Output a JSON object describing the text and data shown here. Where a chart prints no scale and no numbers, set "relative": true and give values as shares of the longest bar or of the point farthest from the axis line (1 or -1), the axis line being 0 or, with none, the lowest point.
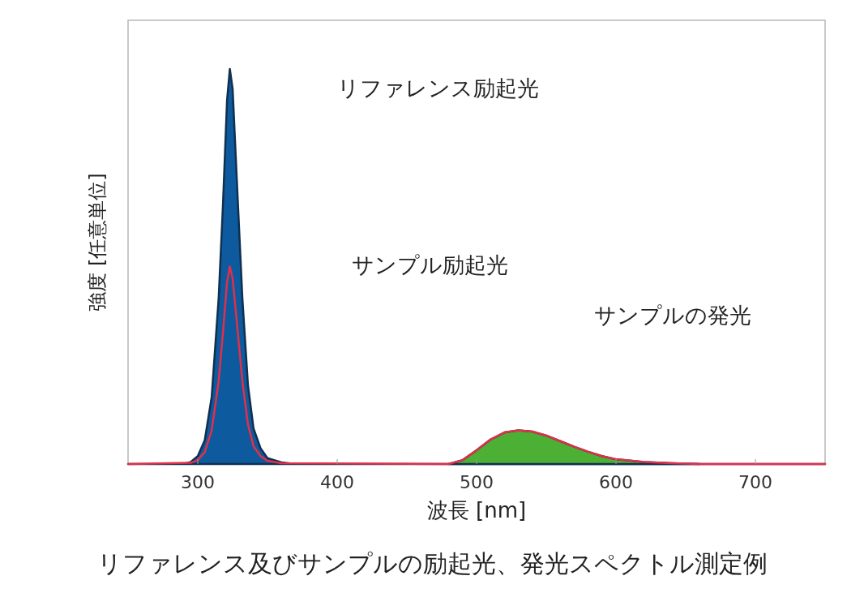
{
  "chart_data": {
    "type": "area",
    "relative": true,
    "xlabel": "波長 [nm]",
    "ylabel": "強度 [任意単位]",
    "annotations": [
      "リファレンス励起光",
      "サンプル励起光",
      "サンプルの発光",
      "リファレンス及びサンプルの励起光、発光スペクトル測定例"
    ],
    "xlim": [
      250,
      750
    ],
    "xticks": [
      300,
      400,
      500,
      600,
      700
    ],
    "tick_labels": "x",
    "grid": false,
    "series": [
      {
        "color": "#0d5a9e",
        "x": [
          250,
          290,
          295,
          300,
          305,
          310,
          315,
          318,
          321,
          323,
          325,
          328,
          332,
          336,
          340,
          345,
          350,
          360,
          370,
          750
        ],
        "values": [
          0,
          0,
          0.005,
          0.02,
          0.06,
          0.17,
          0.42,
          0.65,
          0.92,
          1,
          0.95,
          0.72,
          0.42,
          0.2,
          0.09,
          0.04,
          0.015,
          0.004,
          0,
          0
        ]
      },
      {
        "color": "#4cb034",
        "x": [
          480,
          490,
          500,
          510,
          520,
          530,
          540,
          550,
          560,
          570,
          580,
          590,
          600,
          620,
          640,
          660
        ],
        "values": [
          0,
          0.01,
          0.035,
          0.062,
          0.08,
          0.085,
          0.082,
          0.072,
          0.058,
          0.044,
          0.031,
          0.02,
          0.012,
          0.005,
          0.002,
          0
        ]
      },
      {
        "type": "line",
        "color": "#e0304a",
        "x": [
          250,
          295,
          300,
          305,
          310,
          315,
          318,
          321,
          323,
          325,
          328,
          332,
          336,
          340,
          345,
          350,
          360,
          480,
          490,
          500,
          510,
          520,
          530,
          540,
          550,
          560,
          570,
          580,
          590,
          600,
          620,
          640,
          660,
          750
        ],
        "values": [
          0,
          0.003,
          0.01,
          0.03,
          0.085,
          0.21,
          0.33,
          0.46,
          0.5,
          0.47,
          0.36,
          0.21,
          0.1,
          0.045,
          0.02,
          0.008,
          0.002,
          0,
          0.01,
          0.035,
          0.062,
          0.08,
          0.085,
          0.082,
          0.072,
          0.058,
          0.044,
          0.031,
          0.02,
          0.012,
          0.005,
          0.002,
          0,
          0
        ]
      }
    ]
  }
}
